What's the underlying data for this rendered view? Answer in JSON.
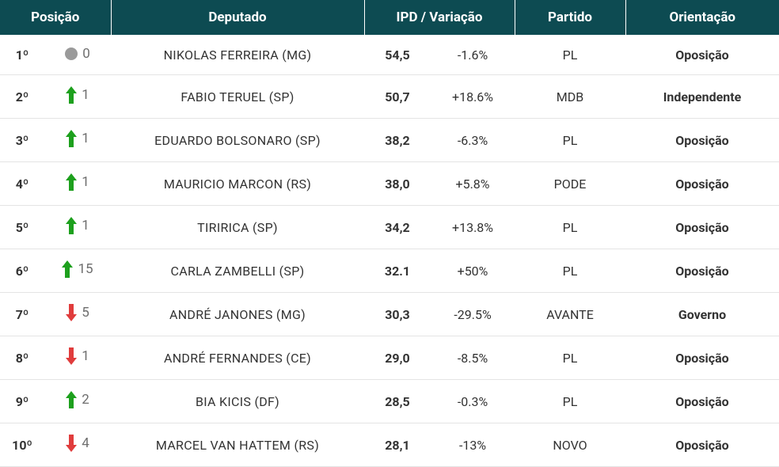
{
  "colors": {
    "header_bg": "#0d4b52",
    "header_fg": "#ffffff",
    "row_border": "#e4e4e4",
    "text": "#333333",
    "muted": "#6e6e6e",
    "neutral_dot": "#9a9a9a",
    "arrow_up": "#1da01d",
    "arrow_down": "#e03c3c",
    "var_pos": "#1da01d",
    "var_neg": "#e03c3c",
    "orient_oposicao": "#1e66d0",
    "orient_independente": "#9a9a9a",
    "orient_governo": "#d01e1e"
  },
  "headers": {
    "posicao": "Posição",
    "deputado": "Deputado",
    "ipd_variacao": "IPD / Variação",
    "partido": "Partido",
    "orientacao": "Orientação"
  },
  "rows": [
    {
      "rank": "1º",
      "dir": "none",
      "delta": "0",
      "name": "NIKOLAS FERREIRA (MG)",
      "ipd": "54,5",
      "var": "-1.6%",
      "var_sign": "neg",
      "party": "PL",
      "orient": "Oposição",
      "orient_key": "oposicao"
    },
    {
      "rank": "2º",
      "dir": "up",
      "delta": "1",
      "name": "FABIO TERUEL (SP)",
      "ipd": "50,7",
      "var": "+18.6%",
      "var_sign": "pos",
      "party": "MDB",
      "orient": "Independente",
      "orient_key": "independente"
    },
    {
      "rank": "3º",
      "dir": "up",
      "delta": "1",
      "name": "EDUARDO BOLSONARO (SP)",
      "ipd": "38,2",
      "var": "-6.3%",
      "var_sign": "neg",
      "party": "PL",
      "orient": "Oposição",
      "orient_key": "oposicao"
    },
    {
      "rank": "4º",
      "dir": "up",
      "delta": "1",
      "name": "MAURICIO MARCON (RS)",
      "ipd": "38,0",
      "var": "+5.8%",
      "var_sign": "pos",
      "party": "PODE",
      "orient": "Oposição",
      "orient_key": "oposicao"
    },
    {
      "rank": "5º",
      "dir": "up",
      "delta": "1",
      "name": "TIRIRICA (SP)",
      "ipd": "34,2",
      "var": "+13.8%",
      "var_sign": "pos",
      "party": "PL",
      "orient": "Oposição",
      "orient_key": "oposicao"
    },
    {
      "rank": "6º",
      "dir": "up",
      "delta": "15",
      "name": "CARLA ZAMBELLI (SP)",
      "ipd": "32.1",
      "var": "+50%",
      "var_sign": "pos",
      "party": "PL",
      "orient": "Oposição",
      "orient_key": "oposicao"
    },
    {
      "rank": "7º",
      "dir": "down",
      "delta": "5",
      "name": "ANDRÉ JANONES (MG)",
      "ipd": "30,3",
      "var": "-29.5%",
      "var_sign": "neg",
      "party": "AVANTE",
      "orient": "Governo",
      "orient_key": "governo"
    },
    {
      "rank": "8º",
      "dir": "down",
      "delta": "1",
      "name": "ANDRÉ FERNANDES (CE)",
      "ipd": "29,0",
      "var": "-8.5%",
      "var_sign": "neg",
      "party": "PL",
      "orient": "Oposição",
      "orient_key": "oposicao"
    },
    {
      "rank": "9º",
      "dir": "up",
      "delta": "2",
      "name": "BIA KICIS (DF)",
      "ipd": "28,5",
      "var": "-0.3%",
      "var_sign": "neg",
      "party": "PL",
      "orient": "Oposição",
      "orient_key": "oposicao"
    },
    {
      "rank": "10º",
      "dir": "down",
      "delta": "4",
      "name": "MARCEL VAN HATTEM (RS)",
      "ipd": "28,1",
      "var": "-13%",
      "var_sign": "neg",
      "party": "NOVO",
      "orient": "Oposição",
      "orient_key": "oposicao"
    }
  ]
}
